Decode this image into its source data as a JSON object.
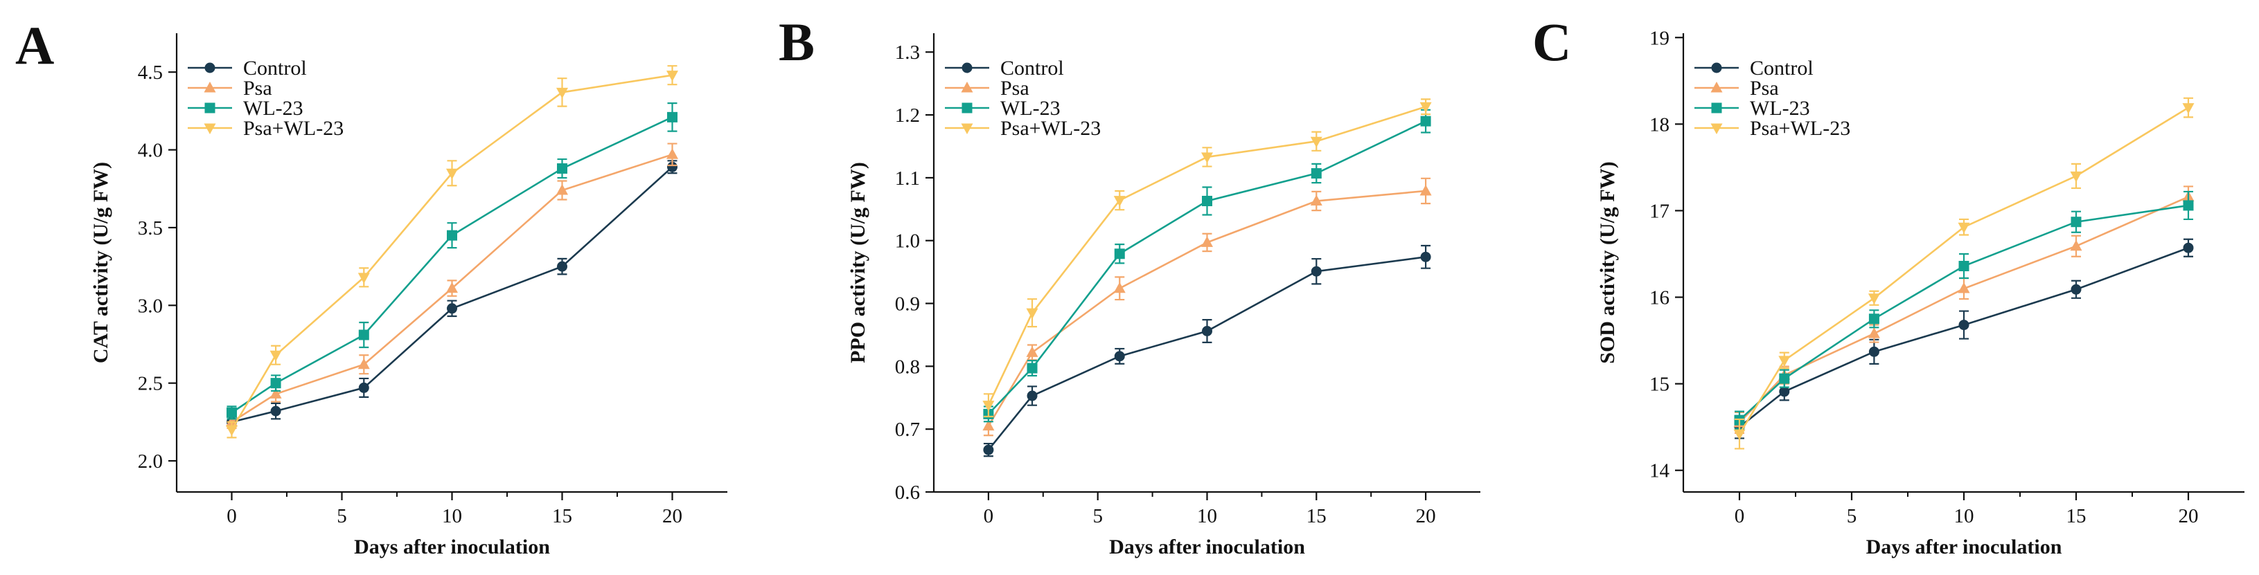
{
  "figure": {
    "colors": {
      "Control": "#1b3a4f",
      "Psa": "#f4a66a",
      "WL-23": "#12a08e",
      "Psa+WL-23": "#f9c75e"
    }
  },
  "chart_data": [
    {
      "panel": "A",
      "type": "line",
      "xlabel": "Days after inoculation",
      "ylabel": "CAT activity (U/g FW)",
      "x": [
        0,
        2,
        6,
        10,
        15,
        20
      ],
      "xlim": [
        -2.5,
        22.5
      ],
      "ylim": [
        1.8,
        4.75
      ],
      "xticks": [
        "0",
        "5",
        "10",
        "15",
        "20"
      ],
      "yticks": [
        "2.0",
        "2.5",
        "3.0",
        "3.5",
        "4.0",
        "4.5"
      ],
      "legend_position": "top-left",
      "series": [
        {
          "name": "Control",
          "marker": "circle",
          "values": [
            2.25,
            2.32,
            2.47,
            2.98,
            3.25,
            3.89
          ],
          "errors": [
            0.04,
            0.05,
            0.06,
            0.05,
            0.05,
            0.04
          ]
        },
        {
          "name": "Psa",
          "marker": "triangle-up",
          "values": [
            2.25,
            2.43,
            2.62,
            3.11,
            3.74,
            3.97
          ],
          "errors": [
            0.04,
            0.05,
            0.06,
            0.05,
            0.06,
            0.07
          ]
        },
        {
          "name": "WL-23",
          "marker": "square",
          "values": [
            2.31,
            2.5,
            2.81,
            3.45,
            3.88,
            4.21
          ],
          "errors": [
            0.04,
            0.05,
            0.08,
            0.08,
            0.06,
            0.09
          ]
        },
        {
          "name": "Psa+WL-23",
          "marker": "triangle-down",
          "values": [
            2.2,
            2.68,
            3.18,
            3.85,
            4.37,
            4.48
          ],
          "errors": [
            0.05,
            0.06,
            0.06,
            0.08,
            0.09,
            0.06
          ]
        }
      ]
    },
    {
      "panel": "B",
      "type": "line",
      "xlabel": "Days after inoculation",
      "ylabel": "PPO activity (U/g FW)",
      "x": [
        0,
        2,
        6,
        10,
        15,
        20
      ],
      "xlim": [
        -2.5,
        22.5
      ],
      "ylim": [
        0.6,
        1.33
      ],
      "xticks": [
        "0",
        "5",
        "10",
        "15",
        "20"
      ],
      "yticks": [
        "0.6",
        "0.7",
        "0.8",
        "0.9",
        "1.0",
        "1.1",
        "1.2",
        "1.3"
      ],
      "legend_position": "top-left",
      "series": [
        {
          "name": "Control",
          "marker": "circle",
          "values": [
            0.667,
            0.753,
            0.816,
            0.856,
            0.951,
            0.974
          ],
          "errors": [
            0.01,
            0.015,
            0.012,
            0.018,
            0.02,
            0.018
          ]
        },
        {
          "name": "Psa",
          "marker": "triangle-up",
          "values": [
            0.705,
            0.822,
            0.924,
            0.997,
            1.063,
            1.079
          ],
          "errors": [
            0.015,
            0.012,
            0.018,
            0.014,
            0.015,
            0.02
          ]
        },
        {
          "name": "WL-23",
          "marker": "square",
          "values": [
            0.724,
            0.797,
            0.979,
            1.063,
            1.107,
            1.19
          ],
          "errors": [
            0.012,
            0.012,
            0.015,
            0.022,
            0.015,
            0.018
          ]
        },
        {
          "name": "Psa+WL-23",
          "marker": "triangle-down",
          "values": [
            0.738,
            0.885,
            1.064,
            1.133,
            1.158,
            1.213
          ],
          "errors": [
            0.018,
            0.022,
            0.015,
            0.015,
            0.015,
            0.012
          ]
        }
      ]
    },
    {
      "panel": "C",
      "type": "line",
      "xlabel": "Days after inoculation",
      "ylabel": "SOD activity (U/g FW)",
      "x": [
        0,
        2,
        6,
        10,
        15,
        20
      ],
      "xlim": [
        -2.5,
        22.5
      ],
      "ylim": [
        13.75,
        19.05
      ],
      "xticks": [
        "0",
        "5",
        "10",
        "15",
        "20"
      ],
      "yticks": [
        "14",
        "15",
        "16",
        "17",
        "18",
        "19"
      ],
      "legend_position": "top-left",
      "series": [
        {
          "name": "Control",
          "marker": "circle",
          "values": [
            14.5,
            14.91,
            15.37,
            15.68,
            16.09,
            16.57
          ],
          "errors": [
            0.13,
            0.1,
            0.14,
            0.16,
            0.1,
            0.1
          ]
        },
        {
          "name": "Psa",
          "marker": "triangle-up",
          "values": [
            14.55,
            15.1,
            15.58,
            16.1,
            16.59,
            17.16
          ],
          "errors": [
            0.12,
            0.1,
            0.1,
            0.12,
            0.12,
            0.12
          ]
        },
        {
          "name": "WL-23",
          "marker": "square",
          "values": [
            14.58,
            15.06,
            15.75,
            16.36,
            16.87,
            17.06
          ],
          "errors": [
            0.1,
            0.1,
            0.1,
            0.14,
            0.12,
            0.16
          ]
        },
        {
          "name": "Psa+WL-23",
          "marker": "triangle-down",
          "values": [
            14.42,
            15.27,
            15.99,
            16.81,
            17.4,
            18.19
          ],
          "errors": [
            0.17,
            0.09,
            0.08,
            0.09,
            0.14,
            0.11
          ]
        }
      ]
    }
  ]
}
